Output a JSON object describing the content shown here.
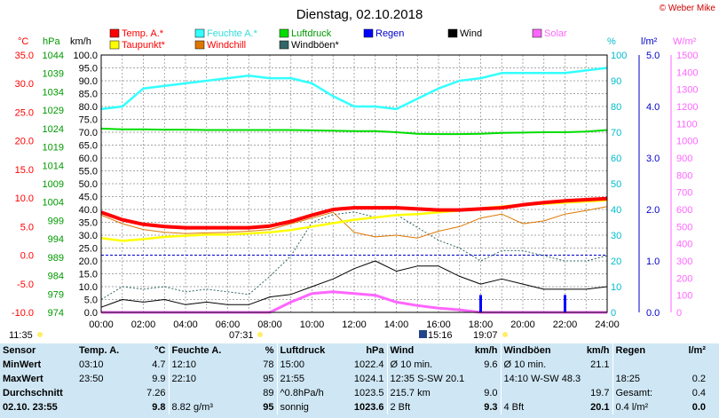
{
  "title": "Dienstag, 02.10.2018",
  "copyright": "© Weber Mike",
  "units": {
    "temp": "°C",
    "hpa": "hPa",
    "kmh": "km/h",
    "pct": "%",
    "rain": "l/m²",
    "solar": "W/m²"
  },
  "legend": [
    {
      "label": "Temp. A.*",
      "color": "#ff0000"
    },
    {
      "label": "Feuchte A.*",
      "color": "#33ffff"
    },
    {
      "label": "Luftdruck",
      "color": "#00dd00"
    },
    {
      "label": "Regen",
      "color": "#0000ff"
    },
    {
      "label": "Wind",
      "color": "#000000"
    },
    {
      "label": "Solar",
      "color": "#ff66ff"
    },
    {
      "label": "Taupunkt*",
      "color": "#ffff00"
    },
    {
      "label": "Windchill",
      "color": "#dd7700"
    },
    {
      "label": "Windböen*",
      "color": "#336666"
    }
  ],
  "axes": {
    "temp_ticks": [
      "35.0",
      "30.0",
      "25.0",
      "20.0",
      "15.0",
      "10.0",
      "5.0",
      "0.0",
      "-5.0",
      "-10.0"
    ],
    "hpa_ticks": [
      "1044",
      "1039",
      "1034",
      "1029",
      "1024",
      "1019",
      "1014",
      "1009",
      "1004",
      "999",
      "994",
      "989",
      "984",
      "979",
      "974"
    ],
    "kmh_ticks": [
      "100.0",
      "95.0",
      "90.0",
      "85.0",
      "80.0",
      "75.0",
      "70.0",
      "65.0",
      "60.0",
      "55.0",
      "50.0",
      "45.0",
      "40.0",
      "35.0",
      "30.0",
      "25.0",
      "20.0",
      "15.0",
      "10.0",
      "5.0",
      "0.0"
    ],
    "pct_ticks": [
      "100",
      "90",
      "80",
      "70",
      "60",
      "50",
      "40",
      "30",
      "20",
      "10",
      "0"
    ],
    "rain_ticks": [
      "5.0",
      "4.0",
      "3.0",
      "2.0",
      "1.0",
      "0.0"
    ],
    "solar_ticks": [
      "1500",
      "1400",
      "1300",
      "1200",
      "1100",
      "1000",
      "900",
      "800",
      "700",
      "600",
      "500",
      "400",
      "300",
      "200",
      "100",
      "0"
    ],
    "time_ticks": [
      "00:00",
      "02:00",
      "04:00",
      "06:00",
      "08:00",
      "10:00",
      "12:00",
      "14:00",
      "16:00",
      "18:00",
      "20:00",
      "22:00",
      "24:00"
    ]
  },
  "markers": {
    "sunrise": "07:31",
    "sunset": "19:07",
    "moon": "15:16",
    "left_time": "11:35"
  },
  "chart_data": {
    "type": "line",
    "x_label": "",
    "x": [
      "00:00",
      "01:00",
      "02:00",
      "03:00",
      "04:00",
      "05:00",
      "06:00",
      "07:00",
      "08:00",
      "09:00",
      "10:00",
      "11:00",
      "12:00",
      "13:00",
      "14:00",
      "15:00",
      "16:00",
      "17:00",
      "18:00",
      "19:00",
      "20:00",
      "21:00",
      "22:00",
      "23:00",
      "24:00"
    ],
    "series": [
      {
        "name": "Temp. A.*",
        "axis": "°C",
        "values": [
          7.5,
          6.2,
          5.4,
          5.0,
          4.8,
          4.8,
          4.8,
          4.8,
          5.1,
          5.9,
          7.0,
          8.0,
          8.3,
          8.3,
          8.3,
          8.1,
          7.9,
          7.9,
          8.1,
          8.3,
          8.8,
          9.2,
          9.5,
          9.7,
          9.9
        ]
      },
      {
        "name": "Feuchte A.*",
        "axis": "%",
        "values": [
          79,
          80,
          87,
          88,
          89,
          90,
          91,
          92,
          91,
          91,
          89,
          84,
          80,
          80,
          79,
          83,
          87,
          90,
          91,
          93,
          93,
          93,
          93,
          94,
          95
        ]
      },
      {
        "name": "Luftdruck",
        "axis": "hPa",
        "values": [
          1024.0,
          1023.8,
          1023.8,
          1023.7,
          1023.7,
          1023.6,
          1023.6,
          1023.6,
          1023.6,
          1023.6,
          1023.5,
          1023.4,
          1023.3,
          1023.3,
          1023.0,
          1022.6,
          1022.5,
          1022.5,
          1022.6,
          1022.8,
          1022.9,
          1023.0,
          1023.0,
          1023.2,
          1023.6
        ]
      },
      {
        "name": "Taupunkt*",
        "axis": "°C",
        "values": [
          3.0,
          2.5,
          2.8,
          3.2,
          3.4,
          3.6,
          3.6,
          3.8,
          4.0,
          4.4,
          5.0,
          5.6,
          6.2,
          6.6,
          7.0,
          7.2,
          7.5,
          7.8,
          8.2,
          8.5,
          8.8,
          9.0,
          9.2,
          9.4,
          9.6
        ]
      },
      {
        "name": "Windchill",
        "axis": "°C",
        "values": [
          7.0,
          5.5,
          4.5,
          4.0,
          3.8,
          3.9,
          4.0,
          4.2,
          4.5,
          5.5,
          6.5,
          7.5,
          4.0,
          3.2,
          3.5,
          3.0,
          4.2,
          5.0,
          6.5,
          7.2,
          5.5,
          6.0,
          7.2,
          7.8,
          8.5
        ]
      },
      {
        "name": "Wind",
        "axis": "km/h",
        "values": [
          2,
          5,
          4,
          5,
          3,
          4,
          3,
          3,
          6,
          7,
          10,
          13,
          17,
          20,
          16,
          18,
          18,
          14,
          11,
          13,
          11,
          9,
          9,
          9,
          10
        ]
      },
      {
        "name": "Windböen*",
        "axis": "km/h",
        "values": [
          5,
          10,
          9,
          10,
          8,
          9,
          8,
          7,
          14,
          22,
          35,
          38,
          39,
          37,
          38,
          33,
          28,
          25,
          20,
          24,
          24,
          22,
          20,
          20,
          22
        ]
      },
      {
        "name": "Solar",
        "axis": "W/m²",
        "values": [
          0,
          0,
          0,
          0,
          0,
          0,
          0,
          0,
          0,
          60,
          110,
          120,
          110,
          100,
          60,
          40,
          25,
          15,
          0,
          0,
          0,
          0,
          0,
          0,
          0
        ]
      },
      {
        "name": "Regen",
        "axis": "l/m²",
        "values": [
          0,
          0,
          0,
          0,
          0,
          0,
          0,
          0,
          0,
          0,
          0,
          0,
          0,
          0,
          0,
          0,
          0,
          0,
          0.2,
          0,
          0,
          0,
          0.2,
          0,
          0
        ]
      }
    ],
    "ranges": {
      "°C": [
        -10,
        35
      ],
      "hPa": [
        974,
        1044
      ],
      "km/h": [
        0,
        100
      ],
      "%": [
        0,
        100
      ],
      "l/m²": [
        0,
        5
      ],
      "W/m²": [
        0,
        1500
      ]
    },
    "grid": true
  },
  "stats": {
    "headers": [
      "Sensor",
      "Temp. A.",
      "°C",
      "Feuchte A.",
      "%",
      "Luftdruck",
      "hPa",
      "Wind",
      "km/h",
      "Windböen",
      "km/h",
      "Regen",
      "l/m²"
    ],
    "rows": [
      [
        "MinWert",
        "03:10",
        "4.7",
        "12:10",
        "78",
        "15:00",
        "1022.4",
        "Ø 10 min.",
        "9.6",
        "Ø 10 min.",
        "21.1",
        "",
        ""
      ],
      [
        "MaxWert",
        "23:50",
        "9.9",
        "22:10",
        "95",
        "21:55",
        "1024.1",
        "12:35   S-SW 20.1",
        "",
        "14:10   W-SW 48.3",
        "",
        "18:25",
        "0.2"
      ],
      [
        "Durchschnitt",
        "",
        "7.26",
        "",
        "89",
        "^0.8hPa/h",
        "1023.5",
        "215.7 km",
        "9.0",
        "",
        "19.7",
        "Gesamt:",
        "0.4"
      ],
      [
        "02.10. 23:55",
        "",
        "9.8",
        "8.82 g/m³",
        "95",
        "sonnig",
        "1023.6",
        "2 Bft",
        "9.3",
        "4 Bft",
        "20.1",
        "0.4 l/m²",
        "0.0"
      ]
    ]
  }
}
